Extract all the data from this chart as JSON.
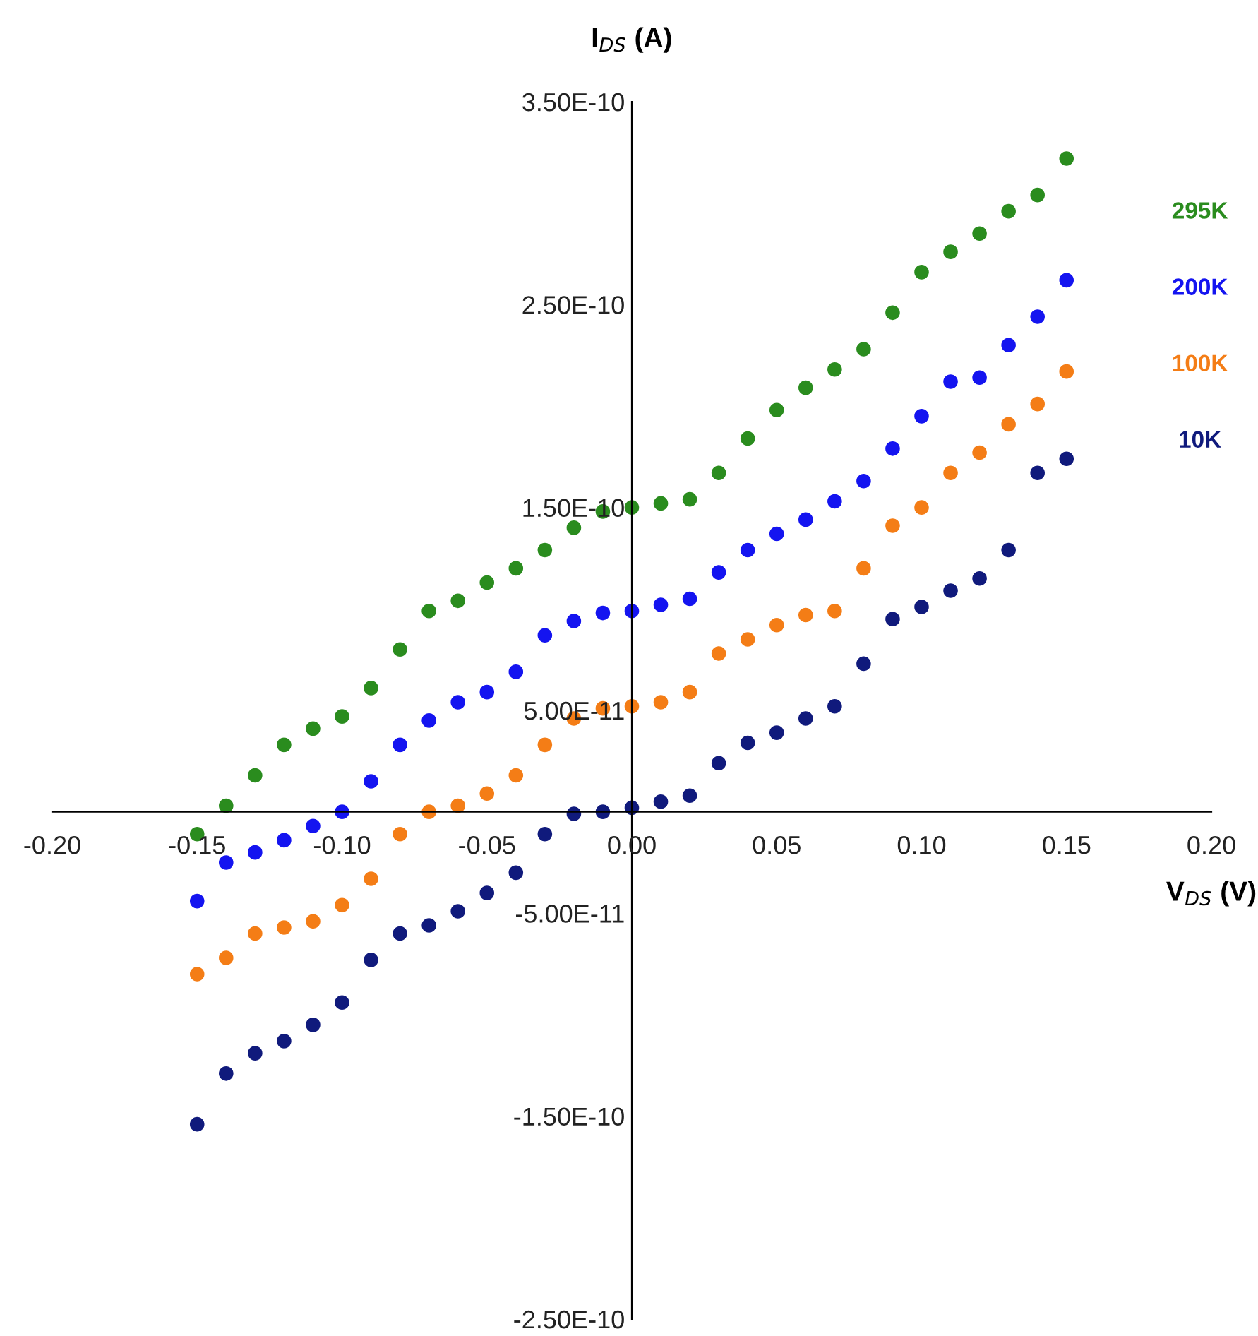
{
  "chart_data": {
    "type": "scatter",
    "xlabel": "V$_{DS}$ (V)",
    "ylabel": "I$_{DS}$ (A)",
    "x": [
      -0.15,
      -0.14,
      -0.13,
      -0.12,
      -0.11,
      -0.1,
      -0.09,
      -0.08,
      -0.07,
      -0.06,
      -0.05,
      -0.04,
      -0.03,
      -0.02,
      -0.01,
      0.0,
      0.01,
      0.02,
      0.03,
      0.04,
      0.05,
      0.06,
      0.07,
      0.08,
      0.09,
      0.1,
      0.11,
      0.12,
      0.13,
      0.14,
      0.15
    ],
    "series": [
      {
        "name": "295K",
        "color": "#2a8c1e",
        "values": [
          -1.1e-11,
          3e-12,
          1.8e-11,
          3.3e-11,
          4.1e-11,
          4.7e-11,
          6.1e-11,
          8e-11,
          9.9e-11,
          1.04e-10,
          1.13e-10,
          1.2e-10,
          1.29e-10,
          1.4e-10,
          1.48e-10,
          1.5e-10,
          1.52e-10,
          1.54e-10,
          1.67e-10,
          1.84e-10,
          1.98e-10,
          2.09e-10,
          2.18e-10,
          2.28e-10,
          2.46e-10,
          2.66e-10,
          2.76e-10,
          2.85e-10,
          2.96e-10,
          3.04e-10,
          3.22e-10
        ]
      },
      {
        "name": "200K",
        "color": "#1414f0",
        "values": [
          -4.4e-11,
          -2.5e-11,
          -2e-11,
          -1.4e-11,
          -7e-12,
          0.0,
          1.5e-11,
          3.3e-11,
          4.5e-11,
          5.4e-11,
          5.9e-11,
          6.9e-11,
          8.7e-11,
          9.4e-11,
          9.8e-11,
          9.9e-11,
          1.02e-10,
          1.05e-10,
          1.18e-10,
          1.29e-10,
          1.37e-10,
          1.44e-10,
          1.53e-10,
          1.63e-10,
          1.79e-10,
          1.95e-10,
          2.12e-10,
          2.14e-10,
          2.3e-10,
          2.44e-10,
          2.62e-10
        ]
      },
      {
        "name": "100K",
        "color": "#f47d16",
        "values": [
          -8e-11,
          -7.2e-11,
          -6e-11,
          -5.7e-11,
          -5.4e-11,
          -4.6e-11,
          -3.3e-11,
          -1.1e-11,
          0.0,
          3e-12,
          9e-12,
          1.8e-11,
          3.3e-11,
          4.6e-11,
          5.1e-11,
          5.2e-11,
          5.4e-11,
          5.9e-11,
          7.8e-11,
          8.5e-11,
          9.2e-11,
          9.7e-11,
          9.9e-11,
          1.2e-10,
          1.41e-10,
          1.5e-10,
          1.67e-10,
          1.77e-10,
          1.91e-10,
          2.01e-10,
          2.17e-10
        ]
      },
      {
        "name": "10K",
        "color": "#101a7c",
        "values": [
          -1.54e-10,
          -1.29e-10,
          -1.19e-10,
          -1.13e-10,
          -1.05e-10,
          -9.4e-11,
          -7.3e-11,
          -6e-11,
          -5.6e-11,
          -4.9e-11,
          -4e-11,
          -3e-11,
          -1.1e-11,
          -1e-12,
          0.0,
          2e-12,
          5e-12,
          8e-12,
          2.4e-11,
          3.4e-11,
          3.9e-11,
          4.6e-11,
          5.2e-11,
          7.3e-11,
          9.5e-11,
          1.01e-10,
          1.09e-10,
          1.15e-10,
          1.29e-10,
          1.67e-10,
          1.74e-10
        ]
      }
    ],
    "xlim": [
      -0.2,
      0.2
    ],
    "xticks": [
      {
        "value": -0.2,
        "label": "-0.20"
      },
      {
        "value": -0.15,
        "label": "-0.15"
      },
      {
        "value": -0.1,
        "label": "-0.10"
      },
      {
        "value": -0.05,
        "label": "-0.05"
      },
      {
        "value": 0.0,
        "label": "0.00"
      },
      {
        "value": 0.05,
        "label": "0.05"
      },
      {
        "value": 0.1,
        "label": "0.10"
      },
      {
        "value": 0.15,
        "label": "0.15"
      },
      {
        "value": 0.2,
        "label": "0.20"
      }
    ],
    "ylim": [
      -2.5e-10,
      3.5e-10
    ],
    "yticks": [
      {
        "value": -2.5e-10,
        "label": "-2.50E-10"
      },
      {
        "value": -1.5e-10,
        "label": "-1.50E-10"
      },
      {
        "value": -5e-11,
        "label": "-5.00E-11"
      },
      {
        "value": 5e-11,
        "label": "5.00E-11"
      },
      {
        "value": 1.5e-10,
        "label": "1.50E-10"
      },
      {
        "value": 2.5e-10,
        "label": "2.50E-10"
      },
      {
        "value": 3.5e-10,
        "label": "3.50E-10"
      }
    ],
    "marker": "circle",
    "grid": false,
    "legend": false
  }
}
